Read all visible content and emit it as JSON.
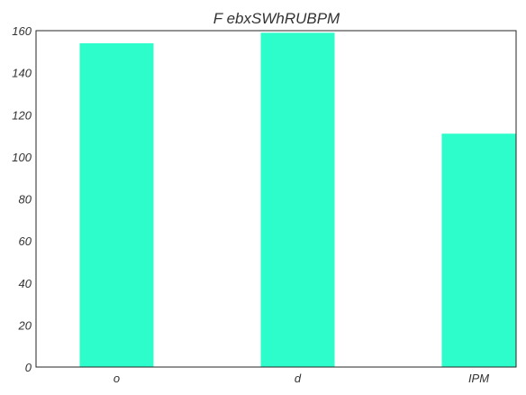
{
  "chart_data": {
    "type": "bar",
    "title": "F ebxSWhRUBPM",
    "xlabel": "",
    "ylabel": "",
    "categories": [
      "o",
      "d",
      "IPM"
    ],
    "values": [
      154,
      159,
      111
    ],
    "ylim": [
      0,
      160
    ],
    "yticks": [
      0,
      20,
      40,
      60,
      80,
      100,
      120,
      140,
      160
    ],
    "bar_color": "#2dfdca",
    "grid": false,
    "legend": "none"
  }
}
